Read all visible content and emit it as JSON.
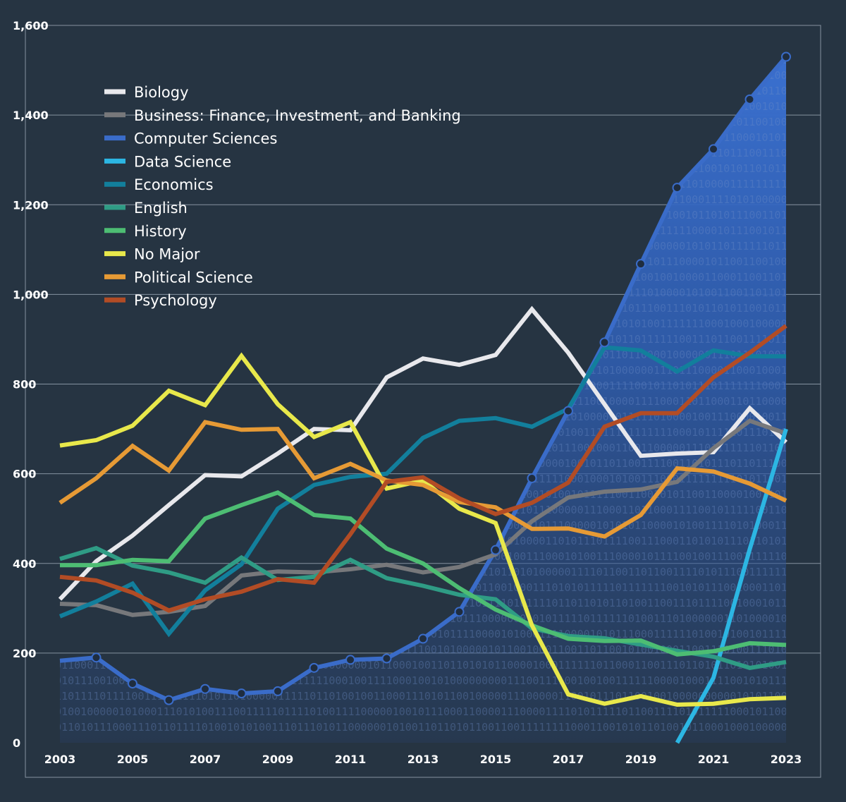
{
  "chart_data": {
    "type": "line",
    "title": "",
    "xlabel": "",
    "ylabel": "",
    "x": [
      2003,
      2004,
      2005,
      2006,
      2007,
      2008,
      2009,
      2010,
      2011,
      2012,
      2013,
      2014,
      2015,
      2016,
      2017,
      2018,
      2019,
      2020,
      2021,
      2022,
      2023
    ],
    "xticks": [
      "2003",
      "2005",
      "2007",
      "2009",
      "2011",
      "2013",
      "2015",
      "2017",
      "2019",
      "2021",
      "2023"
    ],
    "yticks": [
      "0",
      "200",
      "400",
      "600",
      "800",
      "1,000",
      "1,200",
      "1,400",
      "1,600"
    ],
    "ylim": [
      0,
      1600
    ],
    "grid": "horizontal",
    "legend_position": "top-left",
    "background_pattern": "binary digits inside the Computer Sciences area",
    "series": [
      {
        "name": "Biology",
        "color": "#e8e8ec",
        "values": [
          320,
          405,
          462,
          530,
          597,
          594,
          645,
          700,
          697,
          815,
          857,
          843,
          865,
          967,
          870,
          755,
          640,
          645,
          648,
          746,
          670
        ]
      },
      {
        "name": "Business: Finance, Investment, and Banking",
        "color": "#77787b",
        "values": [
          310,
          307,
          285,
          292,
          305,
          373,
          382,
          380,
          387,
          397,
          380,
          392,
          420,
          494,
          547,
          560,
          565,
          582,
          657,
          718,
          690
        ]
      },
      {
        "name": "Computer Sciences",
        "color": "#3a6cc9",
        "style": "filled area with circle markers",
        "values": [
          183,
          190,
          132,
          95,
          120,
          110,
          115,
          167,
          185,
          188,
          232,
          292,
          430,
          590,
          740,
          893,
          1068,
          1238,
          1324,
          1435,
          1530
        ]
      },
      {
        "name": "Data Science",
        "color": "#2cb6e3",
        "values": [
          null,
          null,
          null,
          null,
          null,
          null,
          null,
          null,
          null,
          null,
          null,
          null,
          null,
          null,
          null,
          null,
          null,
          0,
          145,
          432,
          700
        ]
      },
      {
        "name": "Economics",
        "color": "#127f9c",
        "values": [
          282,
          315,
          355,
          243,
          340,
          398,
          522,
          575,
          593,
          600,
          680,
          718,
          724,
          705,
          745,
          882,
          875,
          828,
          875,
          862,
          862
        ]
      },
      {
        "name": "English",
        "color": "#2f9c85",
        "values": [
          410,
          434,
          395,
          380,
          357,
          413,
          363,
          370,
          408,
          367,
          350,
          330,
          320,
          255,
          238,
          233,
          219,
          205,
          192,
          167,
          180
        ]
      },
      {
        "name": "History",
        "color": "#4dbd73",
        "values": [
          396,
          396,
          408,
          405,
          500,
          530,
          558,
          508,
          500,
          433,
          400,
          345,
          297,
          262,
          232,
          227,
          228,
          197,
          204,
          222,
          218
        ]
      },
      {
        "name": "No Major",
        "color": "#e8e84b",
        "values": [
          663,
          675,
          707,
          785,
          753,
          863,
          755,
          682,
          715,
          567,
          585,
          522,
          490,
          262,
          108,
          87,
          104,
          85,
          87,
          97,
          100
        ]
      },
      {
        "name": "Political Science",
        "color": "#e69a35",
        "values": [
          535,
          590,
          662,
          607,
          715,
          698,
          700,
          590,
          622,
          585,
          575,
          537,
          525,
          477,
          478,
          460,
          508,
          612,
          605,
          578,
          540
        ]
      },
      {
        "name": "Psychology",
        "color": "#b24c25",
        "values": [
          370,
          362,
          335,
          295,
          320,
          337,
          365,
          357,
          465,
          582,
          592,
          545,
          510,
          535,
          580,
          705,
          735,
          735,
          815,
          870,
          930
        ]
      }
    ]
  }
}
